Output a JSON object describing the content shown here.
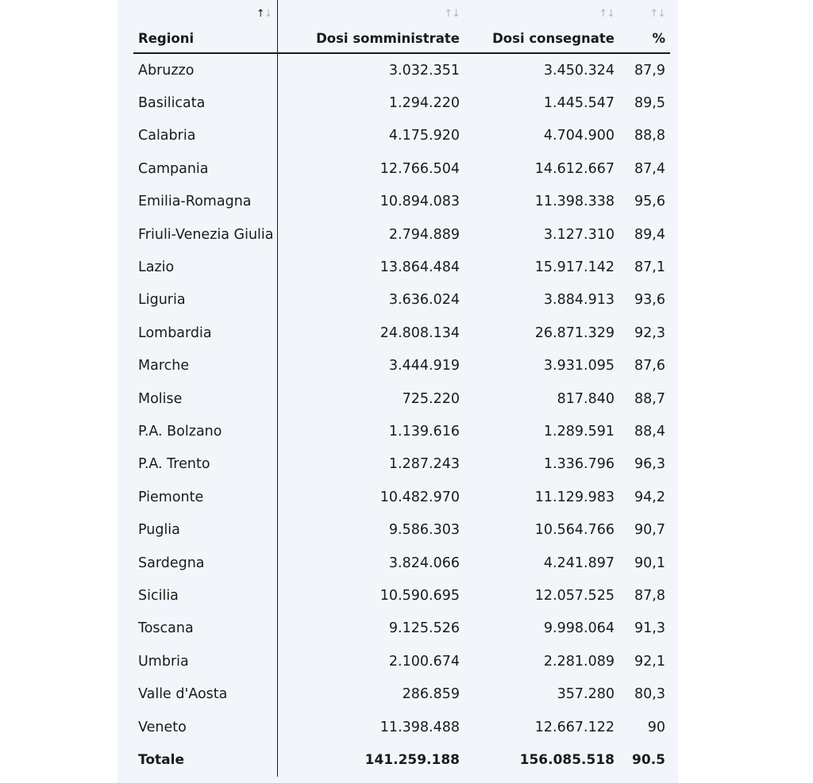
{
  "table": {
    "headers": {
      "region": "Regioni",
      "administered": "Dosi somministrate",
      "delivered": "Dosi consegnate",
      "percent": "%"
    },
    "sort_icon": "sort-up-down-icon",
    "sort_glyphs": {
      "up": "↑",
      "down": "↓"
    },
    "rows": [
      {
        "region": "Abruzzo",
        "administered": "3.032.351",
        "delivered": "3.450.324",
        "percent": "87,9"
      },
      {
        "region": "Basilicata",
        "administered": "1.294.220",
        "delivered": "1.445.547",
        "percent": "89,5"
      },
      {
        "region": "Calabria",
        "administered": "4.175.920",
        "delivered": "4.704.900",
        "percent": "88,8"
      },
      {
        "region": "Campania",
        "administered": "12.766.504",
        "delivered": "14.612.667",
        "percent": "87,4"
      },
      {
        "region": "Emilia-Romagna",
        "administered": "10.894.083",
        "delivered": "11.398.338",
        "percent": "95,6"
      },
      {
        "region": "Friuli-Venezia Giulia",
        "administered": "2.794.889",
        "delivered": "3.127.310",
        "percent": "89,4"
      },
      {
        "region": "Lazio",
        "administered": "13.864.484",
        "delivered": "15.917.142",
        "percent": "87,1"
      },
      {
        "region": "Liguria",
        "administered": "3.636.024",
        "delivered": "3.884.913",
        "percent": "93,6"
      },
      {
        "region": "Lombardia",
        "administered": "24.808.134",
        "delivered": "26.871.329",
        "percent": "92,3"
      },
      {
        "region": "Marche",
        "administered": "3.444.919",
        "delivered": "3.931.095",
        "percent": "87,6"
      },
      {
        "region": "Molise",
        "administered": "725.220",
        "delivered": "817.840",
        "percent": "88,7"
      },
      {
        "region": "P.A. Bolzano",
        "administered": "1.139.616",
        "delivered": "1.289.591",
        "percent": "88,4"
      },
      {
        "region": "P.A. Trento",
        "administered": "1.287.243",
        "delivered": "1.336.796",
        "percent": "96,3"
      },
      {
        "region": "Piemonte",
        "administered": "10.482.970",
        "delivered": "11.129.983",
        "percent": "94,2"
      },
      {
        "region": "Puglia",
        "administered": "9.586.303",
        "delivered": "10.564.766",
        "percent": "90,7"
      },
      {
        "region": "Sardegna",
        "administered": "3.824.066",
        "delivered": "4.241.897",
        "percent": "90,1"
      },
      {
        "region": "Sicilia",
        "administered": "10.590.695",
        "delivered": "12.057.525",
        "percent": "87,8"
      },
      {
        "region": "Toscana",
        "administered": "9.125.526",
        "delivered": "9.998.064",
        "percent": "91,3"
      },
      {
        "region": "Umbria",
        "administered": "2.100.674",
        "delivered": "2.281.089",
        "percent": "92,1"
      },
      {
        "region": "Valle d'Aosta",
        "administered": "286.859",
        "delivered": "357.280",
        "percent": "80,3"
      },
      {
        "region": "Veneto",
        "administered": "11.398.488",
        "delivered": "12.667.122",
        "percent": "90"
      }
    ],
    "total": {
      "region": "Totale",
      "administered": "141.259.188",
      "delivered": "156.085.518",
      "percent": "90.5"
    }
  }
}
